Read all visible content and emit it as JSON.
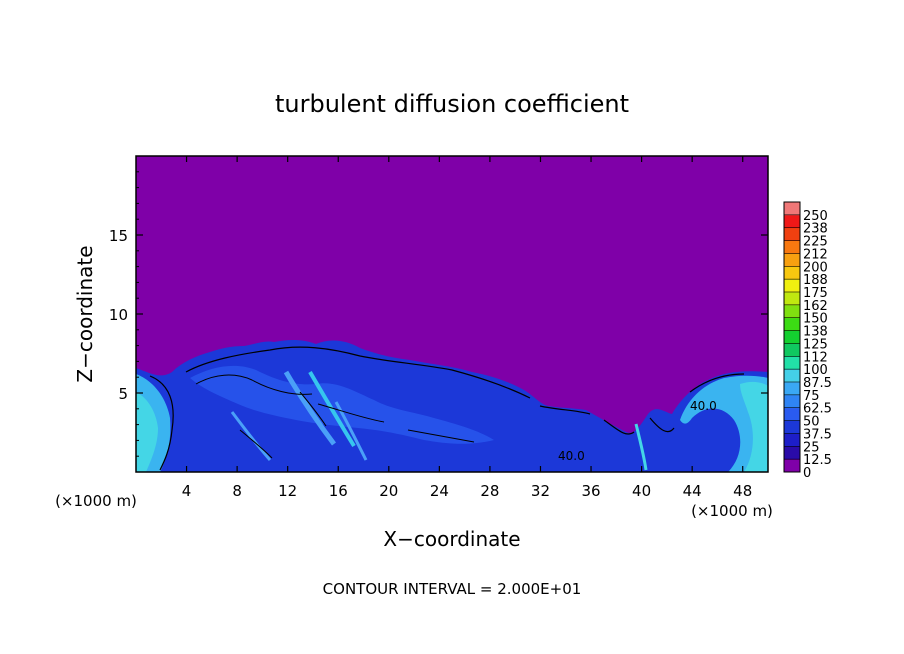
{
  "chart_data": {
    "type": "heatmap",
    "title": "turbulent diffusion coefficient",
    "xlabel": "X−coordinate",
    "ylabel": "Z−coordinate",
    "x_unit": "(×1000 m)",
    "xlim": [
      0,
      50
    ],
    "ylim": [
      0,
      20
    ],
    "x_ticks": [
      4,
      8,
      12,
      16,
      20,
      24,
      28,
      32,
      36,
      40,
      44,
      48
    ],
    "y_ticks": [
      5,
      10,
      15
    ],
    "note": "CONTOUR INTERVAL = 2.000E+01",
    "colorbar": {
      "labels": [
        "0",
        "12.5",
        "25",
        "37.5",
        "50",
        "62.5",
        "75",
        "87.5",
        "100",
        "112",
        "125",
        "138",
        "150",
        "162",
        "175",
        "188",
        "200",
        "212",
        "225",
        "238",
        "250"
      ],
      "colors": [
        "#7f00a8",
        "#2a0ba8",
        "#1d1ec8",
        "#1c38d8",
        "#2a5bf0",
        "#2f84f4",
        "#3aa8f4",
        "#44d0e8",
        "#22e0a8",
        "#10c860",
        "#14d030",
        "#3cdc14",
        "#80e010",
        "#c0e810",
        "#f0f010",
        "#f8c810",
        "#f8a010",
        "#f87810",
        "#f04010",
        "#f01818",
        "#f07878"
      ]
    }
  },
  "contour_labels": [
    "40.0",
    "40.0"
  ]
}
